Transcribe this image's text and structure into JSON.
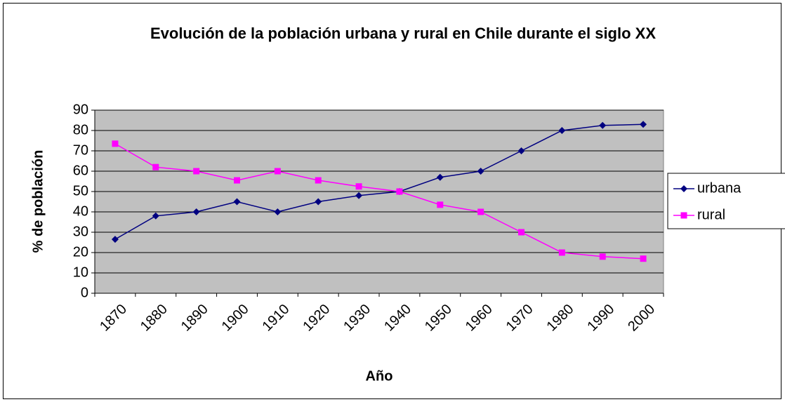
{
  "chart_data": {
    "type": "line",
    "title": "Evolución de la población urbana y rural en Chile durante el siglo XX",
    "x_label": "Año",
    "y_label": "% de población",
    "categories": [
      "1870",
      "1880",
      "1890",
      "1900",
      "1910",
      "1920",
      "1930",
      "1940",
      "1950",
      "1960",
      "1970",
      "1980",
      "1990",
      "2000"
    ],
    "series": [
      {
        "name": "urbana",
        "color": "#000080",
        "marker": "diamond",
        "values": [
          26.5,
          38,
          40,
          45,
          40,
          45,
          48,
          50,
          57,
          60,
          70,
          80,
          82.5,
          83
        ]
      },
      {
        "name": "rural",
        "color": "#ff00ff",
        "marker": "square",
        "values": [
          73.5,
          62,
          60,
          55.5,
          60,
          55.5,
          52.5,
          50,
          43.5,
          40,
          30,
          20,
          18,
          17
        ]
      }
    ],
    "ylim": [
      0,
      90
    ],
    "yticks": [
      0,
      10,
      20,
      30,
      40,
      50,
      60,
      70,
      80,
      90
    ],
    "grid": true,
    "legend": "right"
  }
}
